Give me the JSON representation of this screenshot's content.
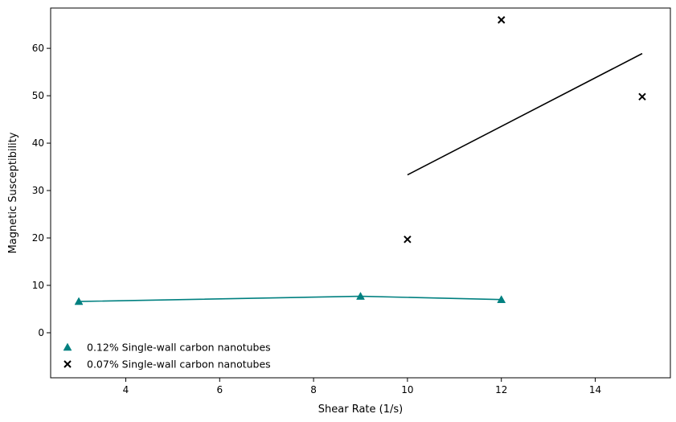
{
  "chart_data": {
    "type": "scatter",
    "xlabel": "Shear Rate (1/s)",
    "ylabel": "Magnetic Susceptibility",
    "xlim": [
      2.4,
      15.6
    ],
    "ylim": [
      -9.5,
      68.5
    ],
    "xticks": [
      4,
      6,
      8,
      10,
      12,
      14
    ],
    "yticks": [
      0,
      10,
      20,
      30,
      40,
      50,
      60
    ],
    "grid": false,
    "legend_position": "lower-left",
    "series": [
      {
        "name": "0.12% Single-wall carbon nanotubes",
        "marker": "triangle",
        "color": "#008080",
        "x": [
          3,
          9,
          12
        ],
        "y": [
          6.6,
          7.7,
          7.0
        ],
        "line": {
          "x": [
            3,
            9,
            12
          ],
          "y": [
            6.6,
            7.7,
            7.0
          ],
          "color": "#008080"
        }
      },
      {
        "name": "0.07% Single-wall carbon nanotubes",
        "marker": "x",
        "color": "#000000",
        "x": [
          10,
          12,
          15
        ],
        "y": [
          19.7,
          66.0,
          49.8
        ],
        "line": {
          "x": [
            10,
            15
          ],
          "y": [
            33.3,
            58.9
          ],
          "color": "#000000"
        }
      }
    ]
  }
}
